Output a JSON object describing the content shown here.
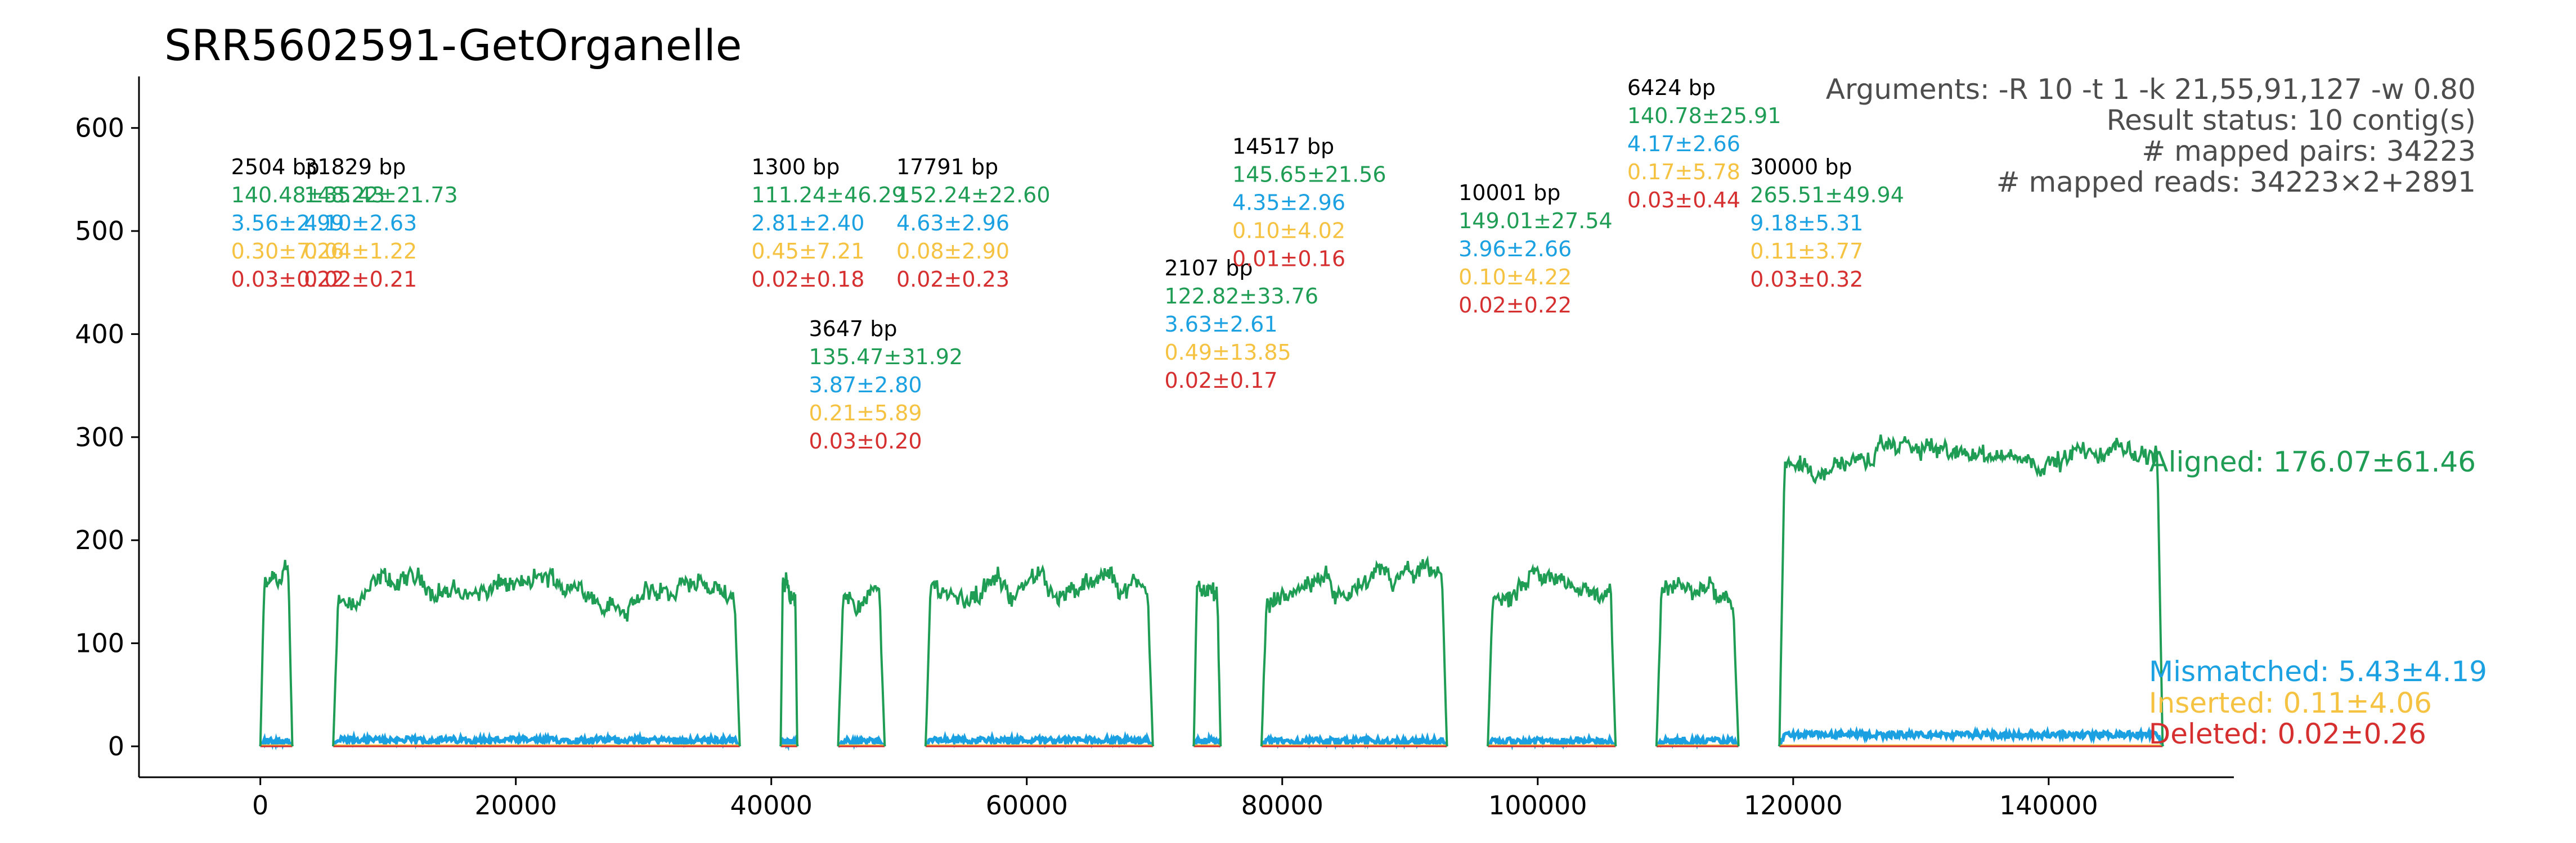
{
  "chart_data": {
    "type": "line",
    "title": "SRR5602591-GetOrganelle",
    "xlabel": "",
    "ylabel": "",
    "xlim": [
      -9500,
      154500
    ],
    "ylim": [
      -30,
      650
    ],
    "xticks": [
      0,
      20000,
      40000,
      60000,
      80000,
      100000,
      120000,
      140000
    ],
    "xtick_labels": [
      "0",
      "20000",
      "40000",
      "60000",
      "80000",
      "100000",
      "120000",
      "140000"
    ],
    "yticks": [
      0,
      100,
      200,
      300,
      400,
      500,
      600
    ],
    "ytick_labels": [
      "0",
      "100",
      "200",
      "300",
      "400",
      "500",
      "600"
    ],
    "grid": false,
    "colors": {
      "aligned": "#1f9d55",
      "mismatched": "#1ba1e2",
      "inserted": "#f5c242",
      "deleted": "#d62f2f",
      "contig_length": "#000000"
    },
    "info": [
      "Arguments: -R 10 -t 1 -k 21,55,91,127 -w 0.80",
      "Result status: 10 contig(s)",
      "# mapped pairs: 34223",
      "# mapped reads: 34223×2+2891"
    ],
    "summary": {
      "aligned": "Aligned: 176.07±61.46",
      "mismatched": "Mismatched: 5.43±4.19",
      "inserted": "Inserted: 0.11±4.06",
      "deleted": "Deleted: 0.02±0.26"
    },
    "contigs": [
      {
        "start": 0,
        "end": 2504,
        "length_label": "2504 bp",
        "aligned": "140.48±35.43",
        "mismatched": "3.56±2.99",
        "inserted": "0.30±7.26",
        "deleted": "0.03±0.22",
        "mean_aligned": 150,
        "mean_mismatch": 4,
        "label_top": 555
      },
      {
        "start": 5704,
        "end": 37533,
        "length_label": "31829 bp",
        "aligned": "148.22±21.73",
        "mismatched": "4.10±2.63",
        "inserted": "0.04±1.22",
        "deleted": "0.02±0.21",
        "mean_aligned": 150,
        "mean_mismatch": 5,
        "label_top": 555
      },
      {
        "start": 40733,
        "end": 42033,
        "length_label": "1300 bp",
        "aligned": "111.24±46.29",
        "mismatched": "2.81±2.40",
        "inserted": "0.45±7.21",
        "deleted": "0.02±0.18",
        "mean_aligned": 150,
        "mean_mismatch": 3,
        "label_top": 555
      },
      {
        "start": 45233,
        "end": 48880,
        "length_label": "3647 bp",
        "aligned": "135.47±31.92",
        "mismatched": "3.87±2.80",
        "inserted": "0.21±5.89",
        "deleted": "0.03±0.20",
        "mean_aligned": 150,
        "mean_mismatch": 4,
        "label_top": 398
      },
      {
        "start": 52080,
        "end": 69871,
        "length_label": "17791 bp",
        "aligned": "152.24±22.60",
        "mismatched": "4.63±2.96",
        "inserted": "0.08±2.90",
        "deleted": "0.02±0.23",
        "mean_aligned": 150,
        "mean_mismatch": 5,
        "label_top": 555
      },
      {
        "start": 73071,
        "end": 75178,
        "length_label": "2107 bp",
        "aligned": "122.82±33.76",
        "mismatched": "3.63±2.61",
        "inserted": "0.49±13.85",
        "deleted": "0.02±0.17",
        "mean_aligned": 150,
        "mean_mismatch": 4,
        "label_top": 457
      },
      {
        "start": 78378,
        "end": 92895,
        "length_label": "14517 bp",
        "aligned": "145.65±21.56",
        "mismatched": "4.35±2.96",
        "inserted": "0.10±4.02",
        "deleted": "0.01±0.16",
        "mean_aligned": 150,
        "mean_mismatch": 4,
        "label_top": 575
      },
      {
        "start": 96095,
        "end": 106096,
        "length_label": "10001 bp",
        "aligned": "149.01±27.54",
        "mismatched": "3.96±2.66",
        "inserted": "0.10±4.22",
        "deleted": "0.02±0.22",
        "mean_aligned": 150,
        "mean_mismatch": 4,
        "label_top": 530
      },
      {
        "start": 109296,
        "end": 115720,
        "length_label": "6424 bp",
        "aligned": "140.78±25.91",
        "mismatched": "4.17±2.66",
        "inserted": "0.17±5.78",
        "deleted": "0.03±0.44",
        "mean_aligned": 150,
        "mean_mismatch": 4,
        "label_top": 632
      },
      {
        "start": 118920,
        "end": 148920,
        "length_label": "30000 bp",
        "aligned": "265.51±49.94",
        "mismatched": "9.18±5.31",
        "inserted": "0.11±3.77",
        "deleted": "0.03±0.32",
        "mean_aligned": 280,
        "mean_mismatch": 10,
        "label_top": 555
      }
    ]
  }
}
